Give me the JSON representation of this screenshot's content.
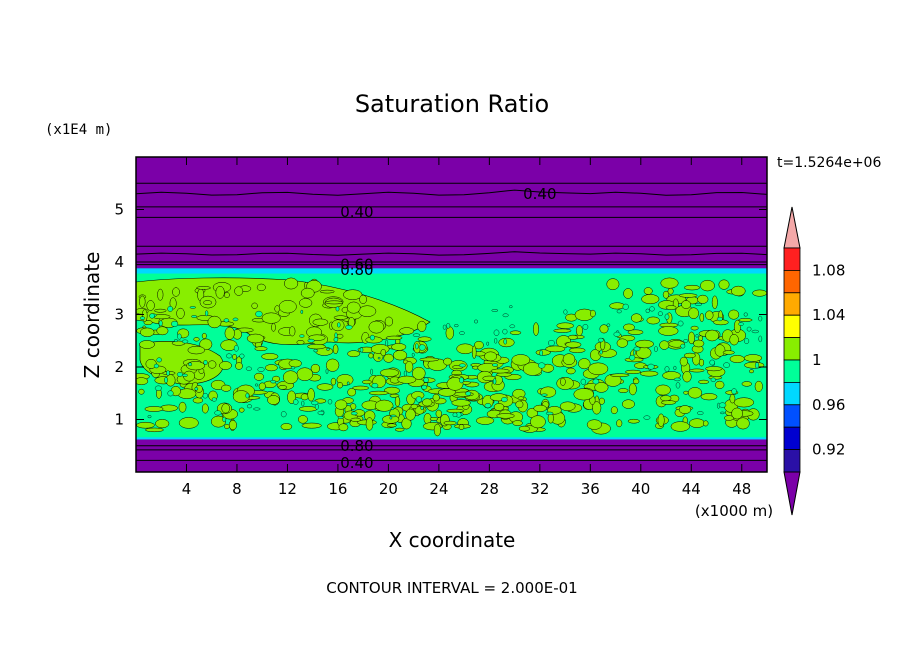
{
  "chart_data": {
    "type": "heatmap",
    "title": "Saturation Ratio",
    "time_label": "t=1.5264e+06",
    "xlabel": "X coordinate",
    "ylabel": "Z coordinate",
    "x_units": "(x1000 m)",
    "y_units": "(x1E4 m)",
    "footer": "CONTOUR INTERVAL = 2.000E-01",
    "xlim": [
      0,
      50
    ],
    "ylim": [
      0,
      6
    ],
    "x_ticks": [
      "4",
      "8",
      "12",
      "16",
      "20",
      "24",
      "28",
      "32",
      "36",
      "40",
      "44",
      "48"
    ],
    "y_ticks": [
      "1",
      "2",
      "3",
      "4",
      "5"
    ],
    "contour_labels": [
      "0.40",
      "0.40",
      "0.60",
      "0.80",
      "0.80",
      "0.40"
    ],
    "layers": [
      {
        "z_from": 0.0,
        "z_to": 0.62,
        "level": "<0.92"
      },
      {
        "z_from": 0.62,
        "z_to": 0.66,
        "level": "0.96-1"
      },
      {
        "z_from": 0.66,
        "z_to": 3.75,
        "level": "0.98-1.02 (mixed)"
      },
      {
        "z_from": 3.75,
        "z_to": 3.85,
        "level": "0.96-1"
      },
      {
        "z_from": 3.85,
        "z_to": 6.0,
        "level": "<0.92"
      }
    ],
    "colorbar": {
      "labels": [
        "1.08",
        "1.04",
        "1",
        "0.96",
        "0.92"
      ],
      "colors": [
        "#7b00a8",
        "#2a10a6",
        "#0000d0",
        "#0050ff",
        "#00d8ff",
        "#00ff99",
        "#88ee00",
        "#ffff00",
        "#ffaa00",
        "#ff6600",
        "#ff2020",
        "#f4a8a8"
      ]
    }
  }
}
